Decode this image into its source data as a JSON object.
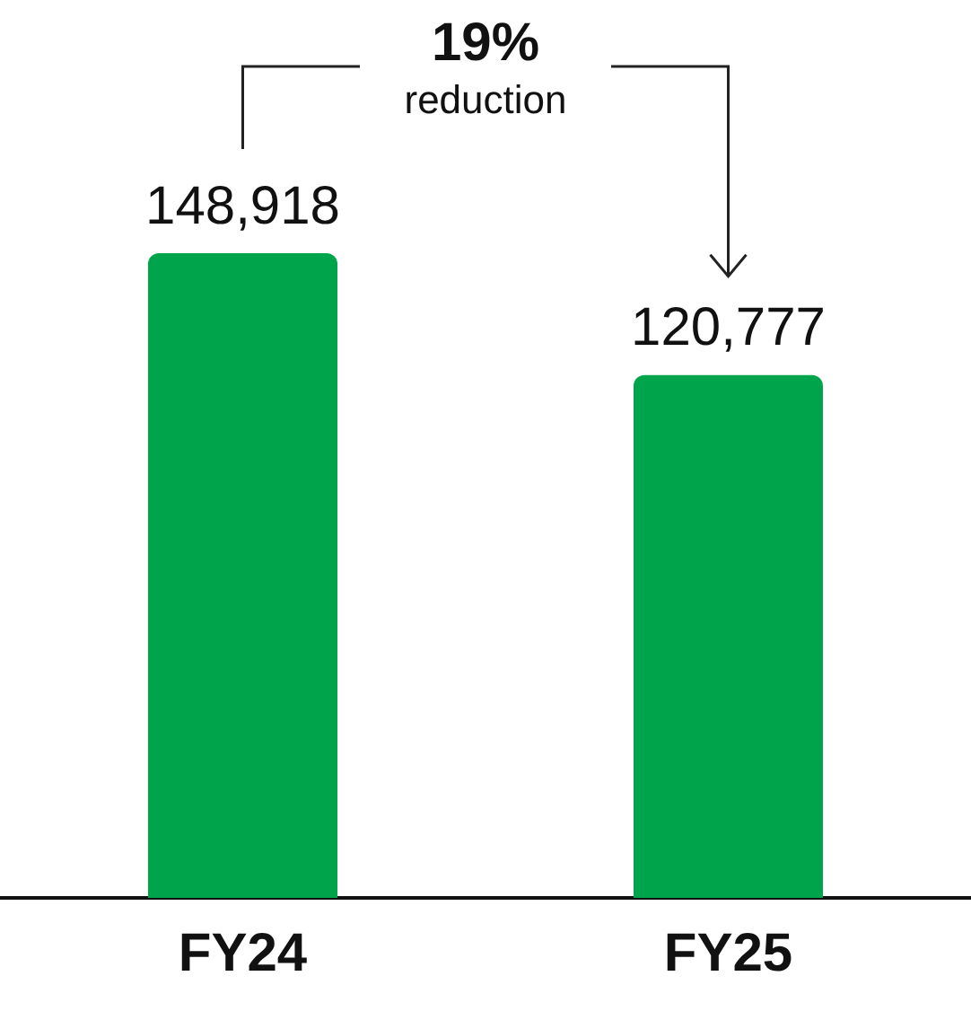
{
  "chart_data": {
    "type": "bar",
    "categories": [
      "FY24",
      "FY25"
    ],
    "values": [
      148918,
      120777
    ],
    "value_labels": [
      "148,918",
      "120,777"
    ],
    "color": "#00a44a",
    "annotations": [
      "19%",
      "reduction"
    ],
    "grid": false,
    "legend": false,
    "tick_labels": "x"
  }
}
